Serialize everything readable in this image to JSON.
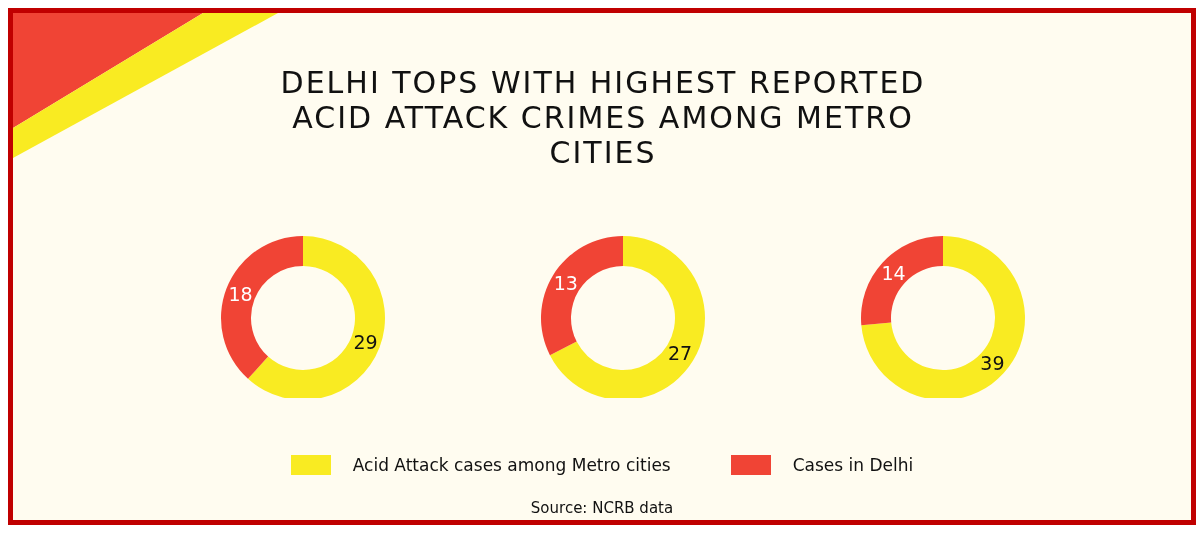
{
  "chart_data": [
    {
      "type": "donut",
      "title": "DELHI TOPS WITH HIGHEST REPORTED ACID ATTACK CRIMES AMONG METRO CITIES",
      "categories": [
        "Acid Attack cases among Metro cities",
        "Cases in Delhi"
      ],
      "values": [
        29,
        18
      ],
      "colors": [
        "#f9eb22",
        "#f04435"
      ],
      "data_labels": true,
      "legend": "bottom",
      "annotations": [
        "Source: NCRB data"
      ]
    },
    {
      "type": "donut",
      "categories": [
        null,
        null
      ],
      "values": [
        27,
        13
      ],
      "colors": [
        "#f9eb22",
        "#f04435"
      ],
      "data_labels": true
    },
    {
      "type": "donut",
      "categories": [
        null,
        null
      ],
      "values": [
        39,
        14
      ],
      "colors": [
        "#f9eb22",
        "#f04435"
      ],
      "data_labels": true
    }
  ]
}
